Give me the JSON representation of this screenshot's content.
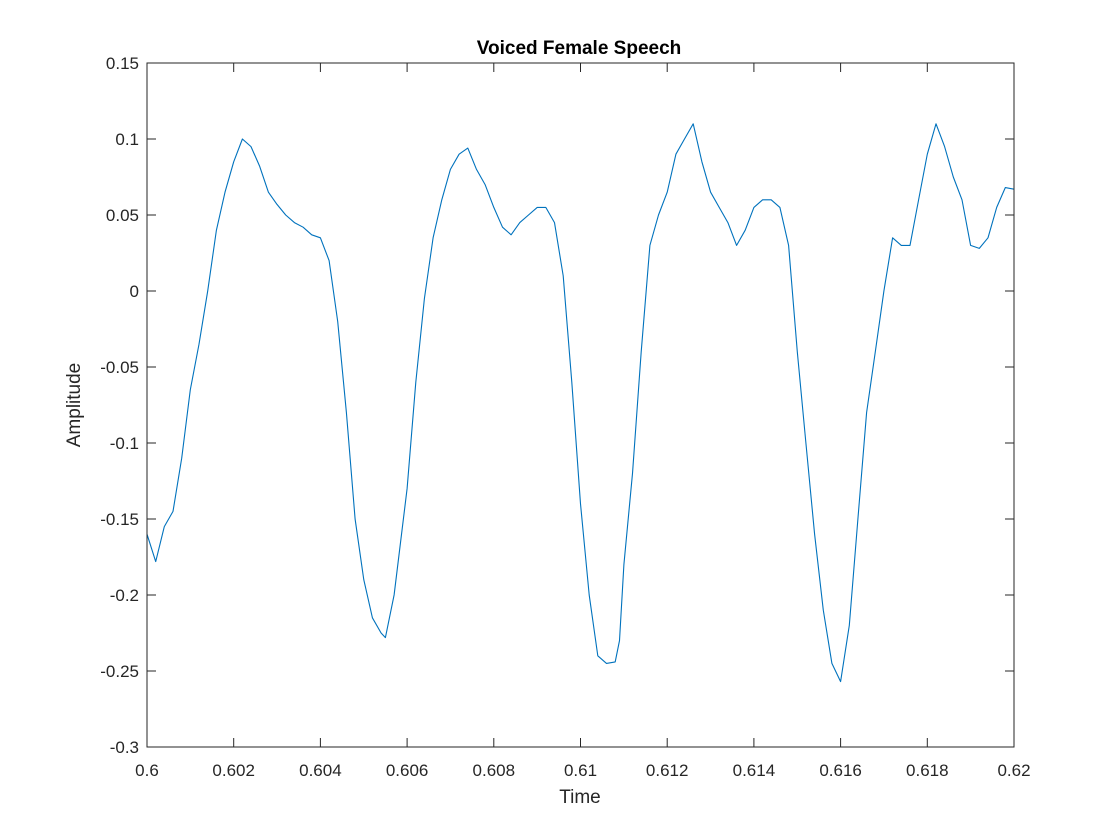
{
  "chart_data": {
    "type": "line",
    "title": "Voiced Female Speech",
    "xlabel": "Time",
    "ylabel": "Amplitude",
    "xlim": [
      0.6,
      0.62
    ],
    "ylim": [
      -0.3,
      0.15
    ],
    "xticks": [
      0.6,
      0.602,
      0.604,
      0.606,
      0.608,
      0.61,
      0.612,
      0.614,
      0.616,
      0.618,
      0.62
    ],
    "xtick_labels": [
      "0.6",
      "0.602",
      "0.604",
      "0.606",
      "0.608",
      "0.61",
      "0.612",
      "0.614",
      "0.616",
      "0.618",
      "0.62"
    ],
    "yticks": [
      -0.3,
      -0.25,
      -0.2,
      -0.15,
      -0.1,
      -0.05,
      0,
      0.05,
      0.1,
      0.15
    ],
    "ytick_labels": [
      "-0.3",
      "-0.25",
      "-0.2",
      "-0.15",
      "-0.1",
      "-0.05",
      "0",
      "0.05",
      "0.1",
      "0.15"
    ],
    "grid": false,
    "line_color": "#0072BD",
    "series": [
      {
        "x": [
          0.6,
          0.6002,
          0.6004,
          0.6006,
          0.6008,
          0.601,
          0.6012,
          0.6014,
          0.6016,
          0.6018,
          0.602,
          0.6022,
          0.6024,
          0.6026,
          0.6028,
          0.603,
          0.6032,
          0.6034,
          0.6036,
          0.6038,
          0.604,
          0.6042,
          0.6044,
          0.6046,
          0.6048,
          0.605,
          0.6052,
          0.6054,
          0.6055,
          0.6057,
          0.606,
          0.6062,
          0.6064,
          0.6066,
          0.6068,
          0.607,
          0.6072,
          0.6074,
          0.6076,
          0.6078,
          0.608,
          0.6082,
          0.6084,
          0.6086,
          0.6088,
          0.609,
          0.6092,
          0.6094,
          0.6096,
          0.6098,
          0.61,
          0.6102,
          0.6104,
          0.6106,
          0.6108,
          0.6109,
          0.611,
          0.6112,
          0.6114,
          0.6116,
          0.6118,
          0.612,
          0.6122,
          0.6124,
          0.6126,
          0.6128,
          0.613,
          0.6132,
          0.6134,
          0.6136,
          0.6138,
          0.614,
          0.6142,
          0.6144,
          0.6146,
          0.6148,
          0.615,
          0.6152,
          0.6154,
          0.6156,
          0.6158,
          0.616,
          0.6162,
          0.6164,
          0.6166,
          0.6168,
          0.617,
          0.6172,
          0.6174,
          0.6176,
          0.6178,
          0.618,
          0.6182,
          0.6184,
          0.6186,
          0.6188,
          0.619,
          0.6192,
          0.6194,
          0.6196,
          0.6198,
          0.62
        ],
        "y": [
          -0.16,
          -0.178,
          -0.155,
          -0.145,
          -0.11,
          -0.065,
          -0.035,
          0.0,
          0.04,
          0.065,
          0.085,
          0.1,
          0.095,
          0.082,
          0.065,
          0.057,
          0.05,
          0.045,
          0.042,
          0.037,
          0.035,
          0.02,
          -0.02,
          -0.08,
          -0.15,
          -0.19,
          -0.215,
          -0.225,
          -0.228,
          -0.2,
          -0.13,
          -0.06,
          -0.005,
          0.035,
          0.06,
          0.08,
          0.09,
          0.094,
          0.08,
          0.07,
          0.055,
          0.042,
          0.037,
          0.045,
          0.05,
          0.055,
          0.055,
          0.045,
          0.01,
          -0.06,
          -0.14,
          -0.2,
          -0.24,
          -0.245,
          -0.244,
          -0.23,
          -0.18,
          -0.12,
          -0.04,
          0.03,
          0.05,
          0.065,
          0.09,
          0.1,
          0.11,
          0.085,
          0.065,
          0.055,
          0.045,
          0.03,
          0.04,
          0.055,
          0.06,
          0.06,
          0.055,
          0.03,
          -0.04,
          -0.1,
          -0.16,
          -0.21,
          -0.245,
          -0.257,
          -0.22,
          -0.15,
          -0.08,
          -0.04,
          0.0,
          0.035,
          0.03,
          0.03,
          0.06,
          0.09,
          0.11,
          0.095,
          0.075,
          0.06,
          0.03,
          0.028,
          0.035,
          0.055,
          0.068,
          0.067
        ]
      }
    ]
  }
}
